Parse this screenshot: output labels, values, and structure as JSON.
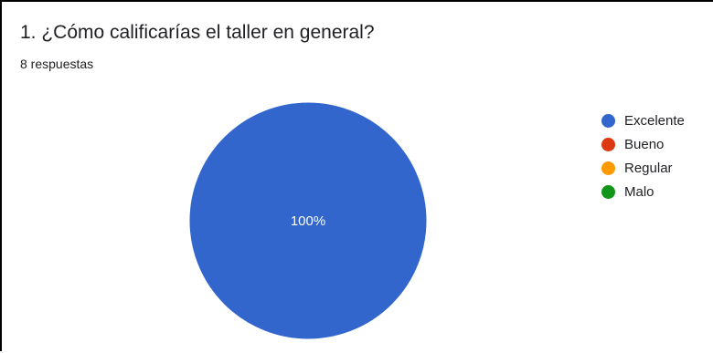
{
  "question": {
    "title": "1. ¿Cómo calificarías el taller en general?",
    "responses_label": "8 respuestas"
  },
  "chart_data": {
    "type": "pie",
    "title": "1. ¿Cómo calificarías el taller en general?",
    "categories": [
      "Excelente",
      "Bueno",
      "Regular",
      "Malo"
    ],
    "values": [
      100,
      0,
      0,
      0
    ],
    "data_labels": [
      "100%",
      "",
      "",
      ""
    ],
    "colors": [
      "#3366cc",
      "#dc3912",
      "#ff9900",
      "#109618"
    ],
    "legend_position": "right"
  }
}
